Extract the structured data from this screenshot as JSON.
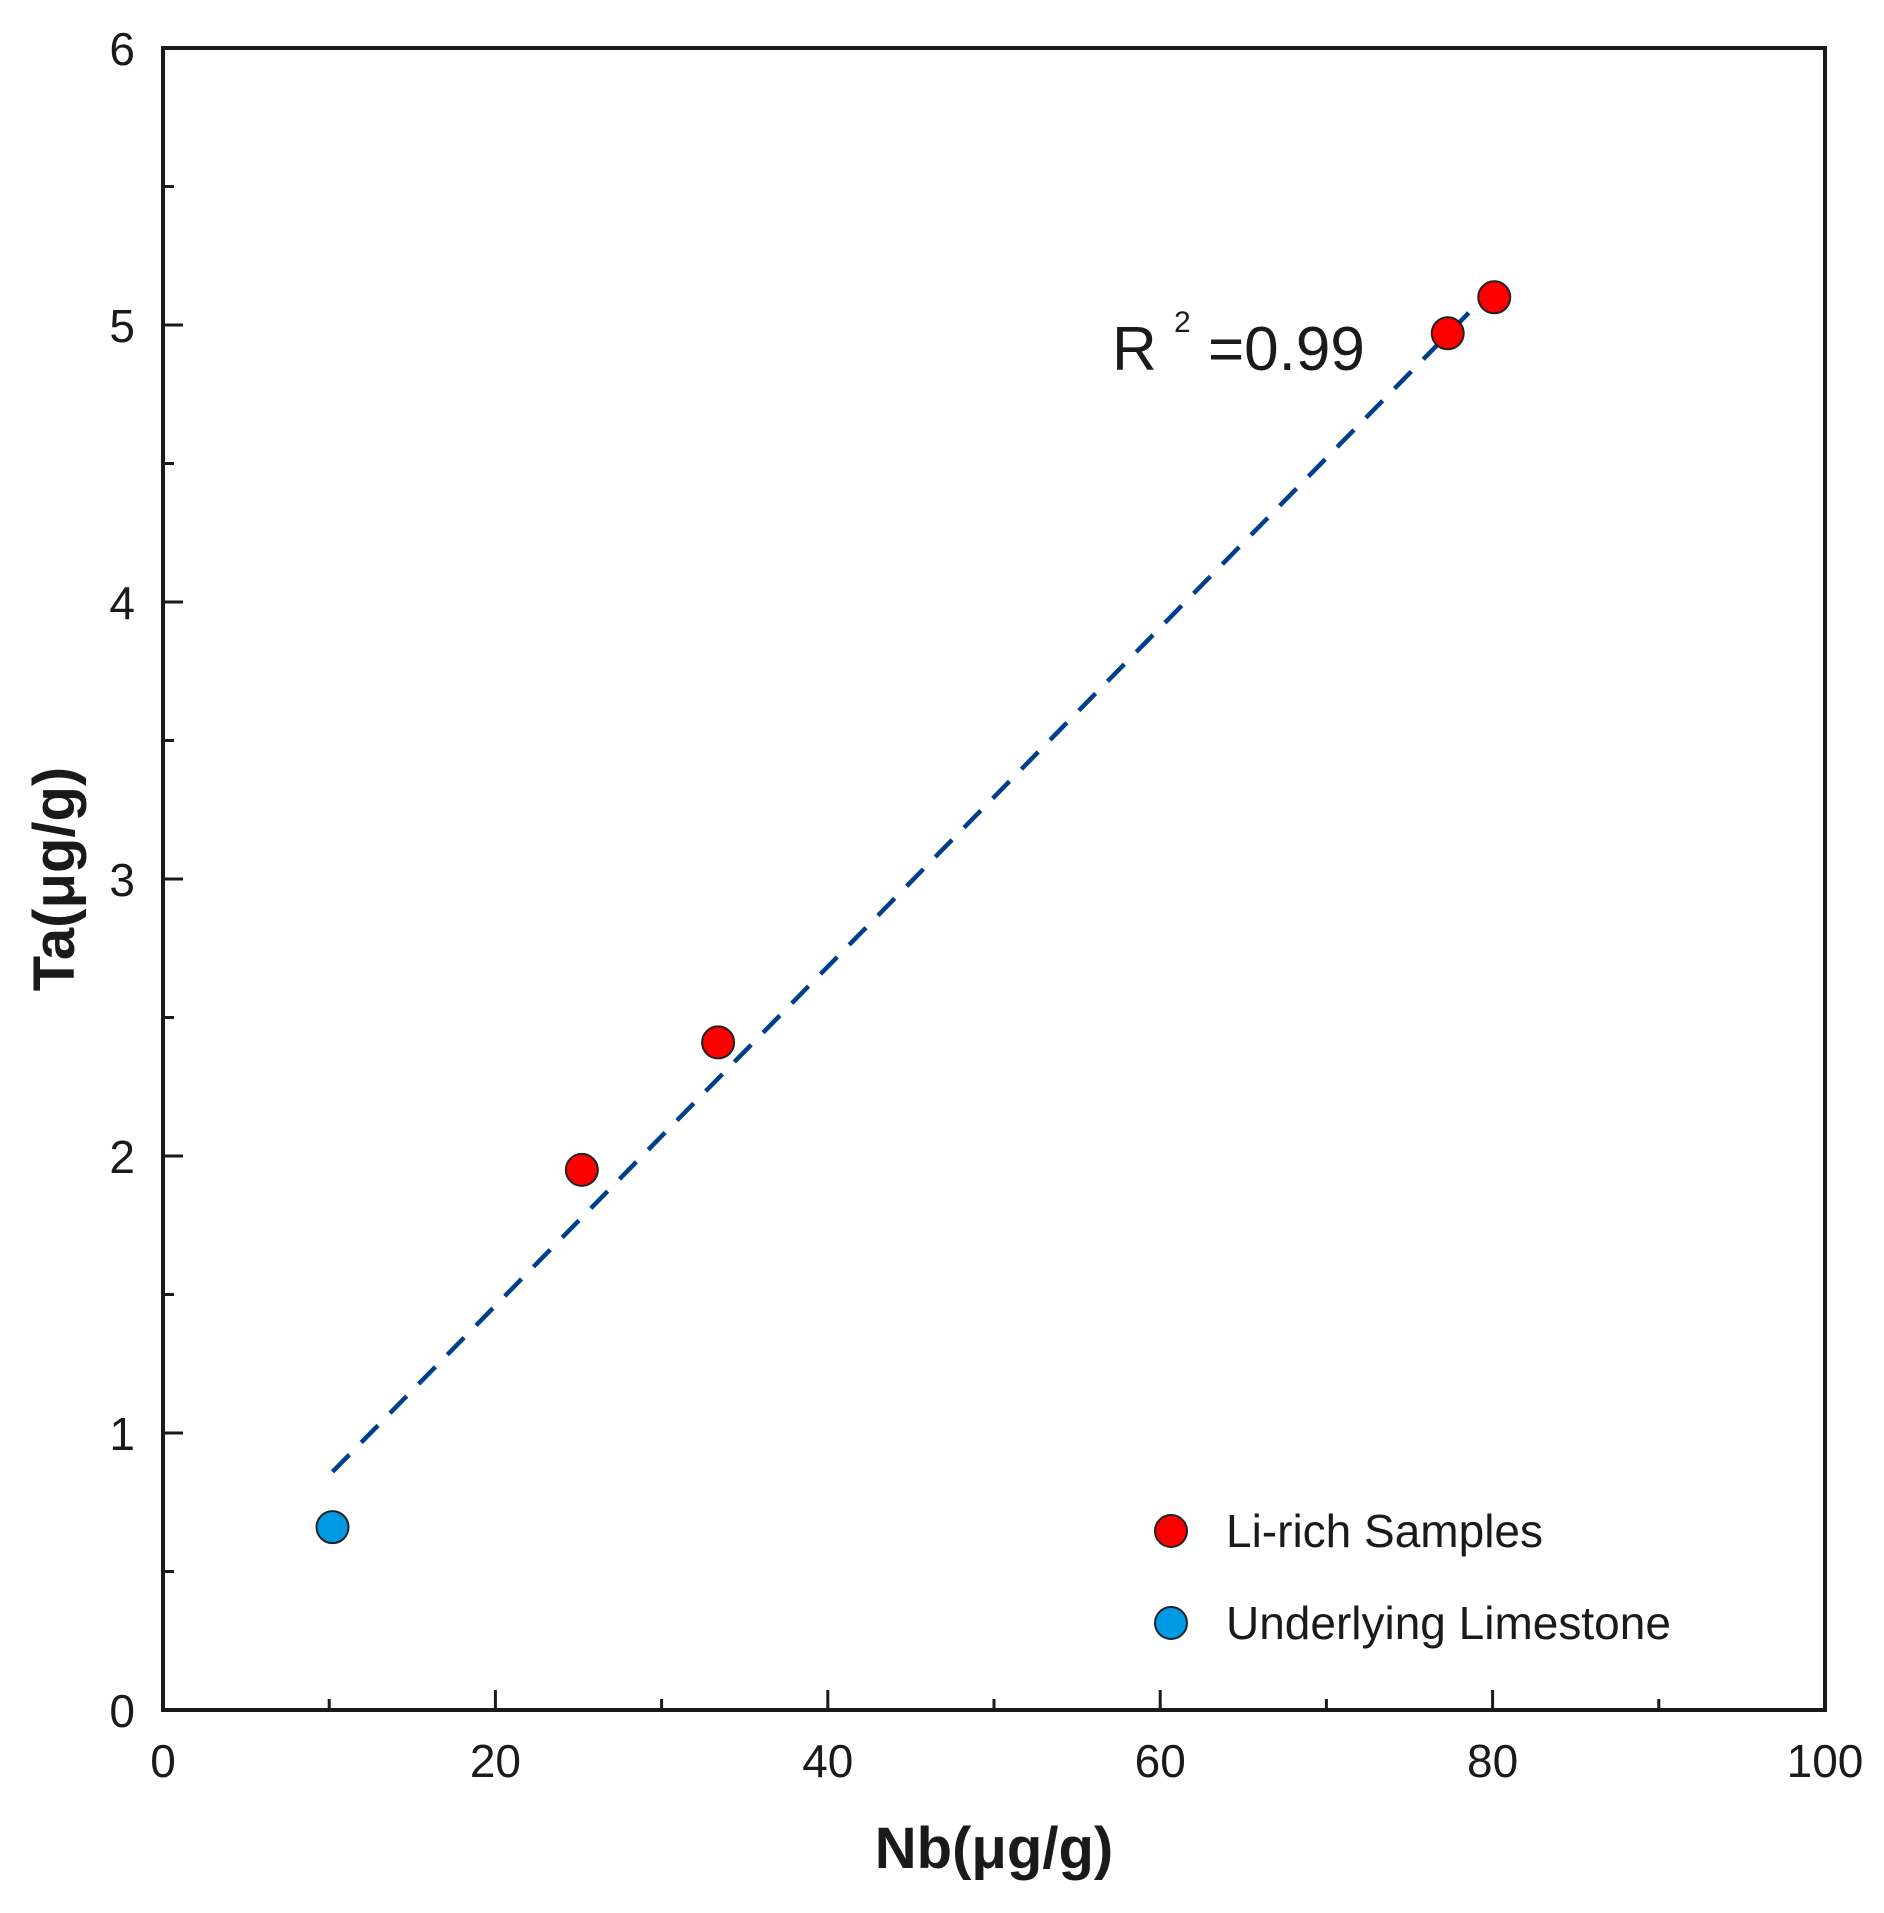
{
  "chart_data": {
    "type": "scatter",
    "xlabel": "Nb(μg/g)",
    "ylabel": "Ta(μg/g)",
    "xlim": [
      0,
      100
    ],
    "ylim": [
      0,
      6
    ],
    "x_major_ticks": [
      0,
      20,
      40,
      60,
      80,
      100
    ],
    "x_minor_ticks": [
      10,
      30,
      50,
      70,
      90
    ],
    "y_major_ticks": [
      0,
      1,
      2,
      3,
      4,
      5,
      6
    ],
    "y_minor_ticks": [
      0.5,
      1.5,
      2.5,
      3.5,
      4.5,
      5.5
    ],
    "x_tick_labels": [
      "0",
      "20",
      "40",
      "60",
      "80",
      "100"
    ],
    "y_tick_labels": [
      "0",
      "1",
      "2",
      "3",
      "4",
      "5",
      "6"
    ],
    "grid": false,
    "legend_position": "bottom-right",
    "series": [
      {
        "name": "Li-rich Samples",
        "color": "#ff0000",
        "points": [
          {
            "x": 25.2,
            "y": 1.95
          },
          {
            "x": 33.4,
            "y": 2.41
          },
          {
            "x": 77.3,
            "y": 4.97
          },
          {
            "x": 80.1,
            "y": 5.1
          }
        ]
      },
      {
        "name": "Underlying Limestone",
        "color": "#0099e6",
        "points": [
          {
            "x": 10.2,
            "y": 0.66
          }
        ]
      }
    ],
    "trendline": {
      "style": "dashed",
      "color": "#003f8c",
      "from": {
        "x": 10.2,
        "y": 0.86
      },
      "to": {
        "x": 80.3,
        "y": 5.15
      }
    },
    "annotation": {
      "base": "R",
      "superscript": "2",
      "text": " =0.99"
    }
  }
}
